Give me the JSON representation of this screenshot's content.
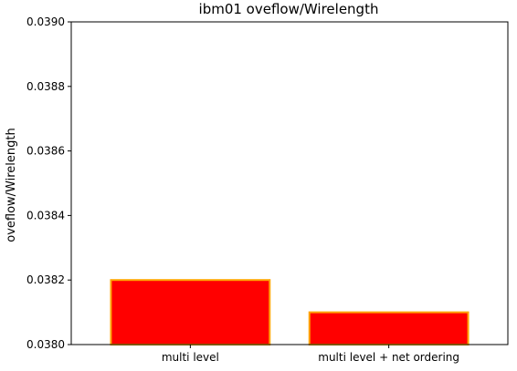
{
  "chart_data": {
    "type": "bar",
    "title": "ibm01 oveflow/Wirelength",
    "xlabel": "",
    "ylabel": "oveflow/Wirelength",
    "categories": [
      "multi level",
      "multi level + net ordering"
    ],
    "values": [
      0.0382,
      0.0381
    ],
    "ylim": [
      0.038,
      0.039
    ],
    "yticks": [
      "0.0380",
      "0.0382",
      "0.0384",
      "0.0386",
      "0.0388",
      "0.0390"
    ],
    "grid": false,
    "colors": {
      "bar_fill": "#ff0000",
      "bar_edge": "#ffa500",
      "axis": "#000000",
      "text": "#000000"
    }
  }
}
